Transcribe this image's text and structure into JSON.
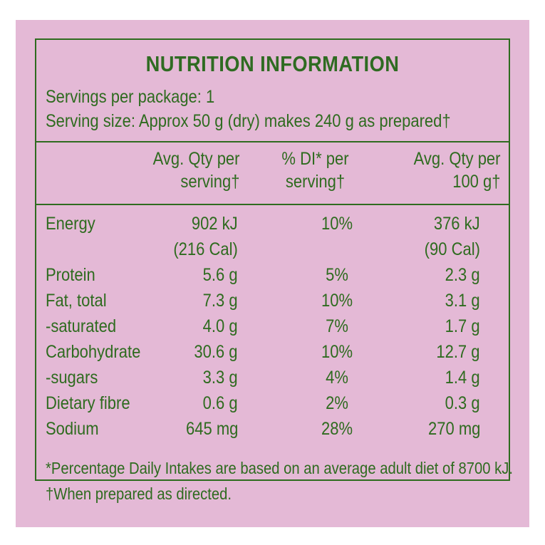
{
  "title": "NUTRITION INFORMATION",
  "servings_per_package": "Servings per package: 1",
  "serving_size": "Serving size: Approx 50 g (dry) makes 240 g as prepared†",
  "headers": {
    "per_serving_1": "Avg. Qty per",
    "per_serving_2": "serving†",
    "di_1": "% DI* per",
    "di_2": "serving†",
    "per100_1": "Avg. Qty per",
    "per100_2": "100 g†"
  },
  "rows": [
    {
      "nutrient": "Energy",
      "per_serving": "902 kJ",
      "di": "10%",
      "per_100g": "376 kJ"
    },
    {
      "nutrient": "",
      "per_serving": "(216 Cal)",
      "di": "",
      "per_100g": "(90 Cal)"
    },
    {
      "nutrient": "Protein",
      "per_serving": "5.6 g",
      "di": "5%",
      "per_100g": "2.3 g"
    },
    {
      "nutrient": "Fat, total",
      "per_serving": "7.3 g",
      "di": "10%",
      "per_100g": "3.1 g"
    },
    {
      "nutrient": "-saturated",
      "per_serving": "4.0 g",
      "di": "7%",
      "per_100g": "1.7 g"
    },
    {
      "nutrient": "Carbohydrate",
      "per_serving": "30.6 g",
      "di": "10%",
      "per_100g": "12.7 g"
    },
    {
      "nutrient": "-sugars",
      "per_serving": "3.3 g",
      "di": "4%",
      "per_100g": "1.4 g"
    },
    {
      "nutrient": "Dietary fibre",
      "per_serving": "0.6 g",
      "di": "2%",
      "per_100g": "0.3 g"
    },
    {
      "nutrient": "Sodium",
      "per_serving": "645 mg",
      "di": "28%",
      "per_100g": "270 mg"
    }
  ],
  "footnote_di": "*Percentage Daily Intakes are based on an average adult diet of 8700 kJ.",
  "footnote_prepared": "†When prepared as directed.",
  "colors": {
    "background": "#e4b9d6",
    "text_green": "#2e6b1f"
  }
}
